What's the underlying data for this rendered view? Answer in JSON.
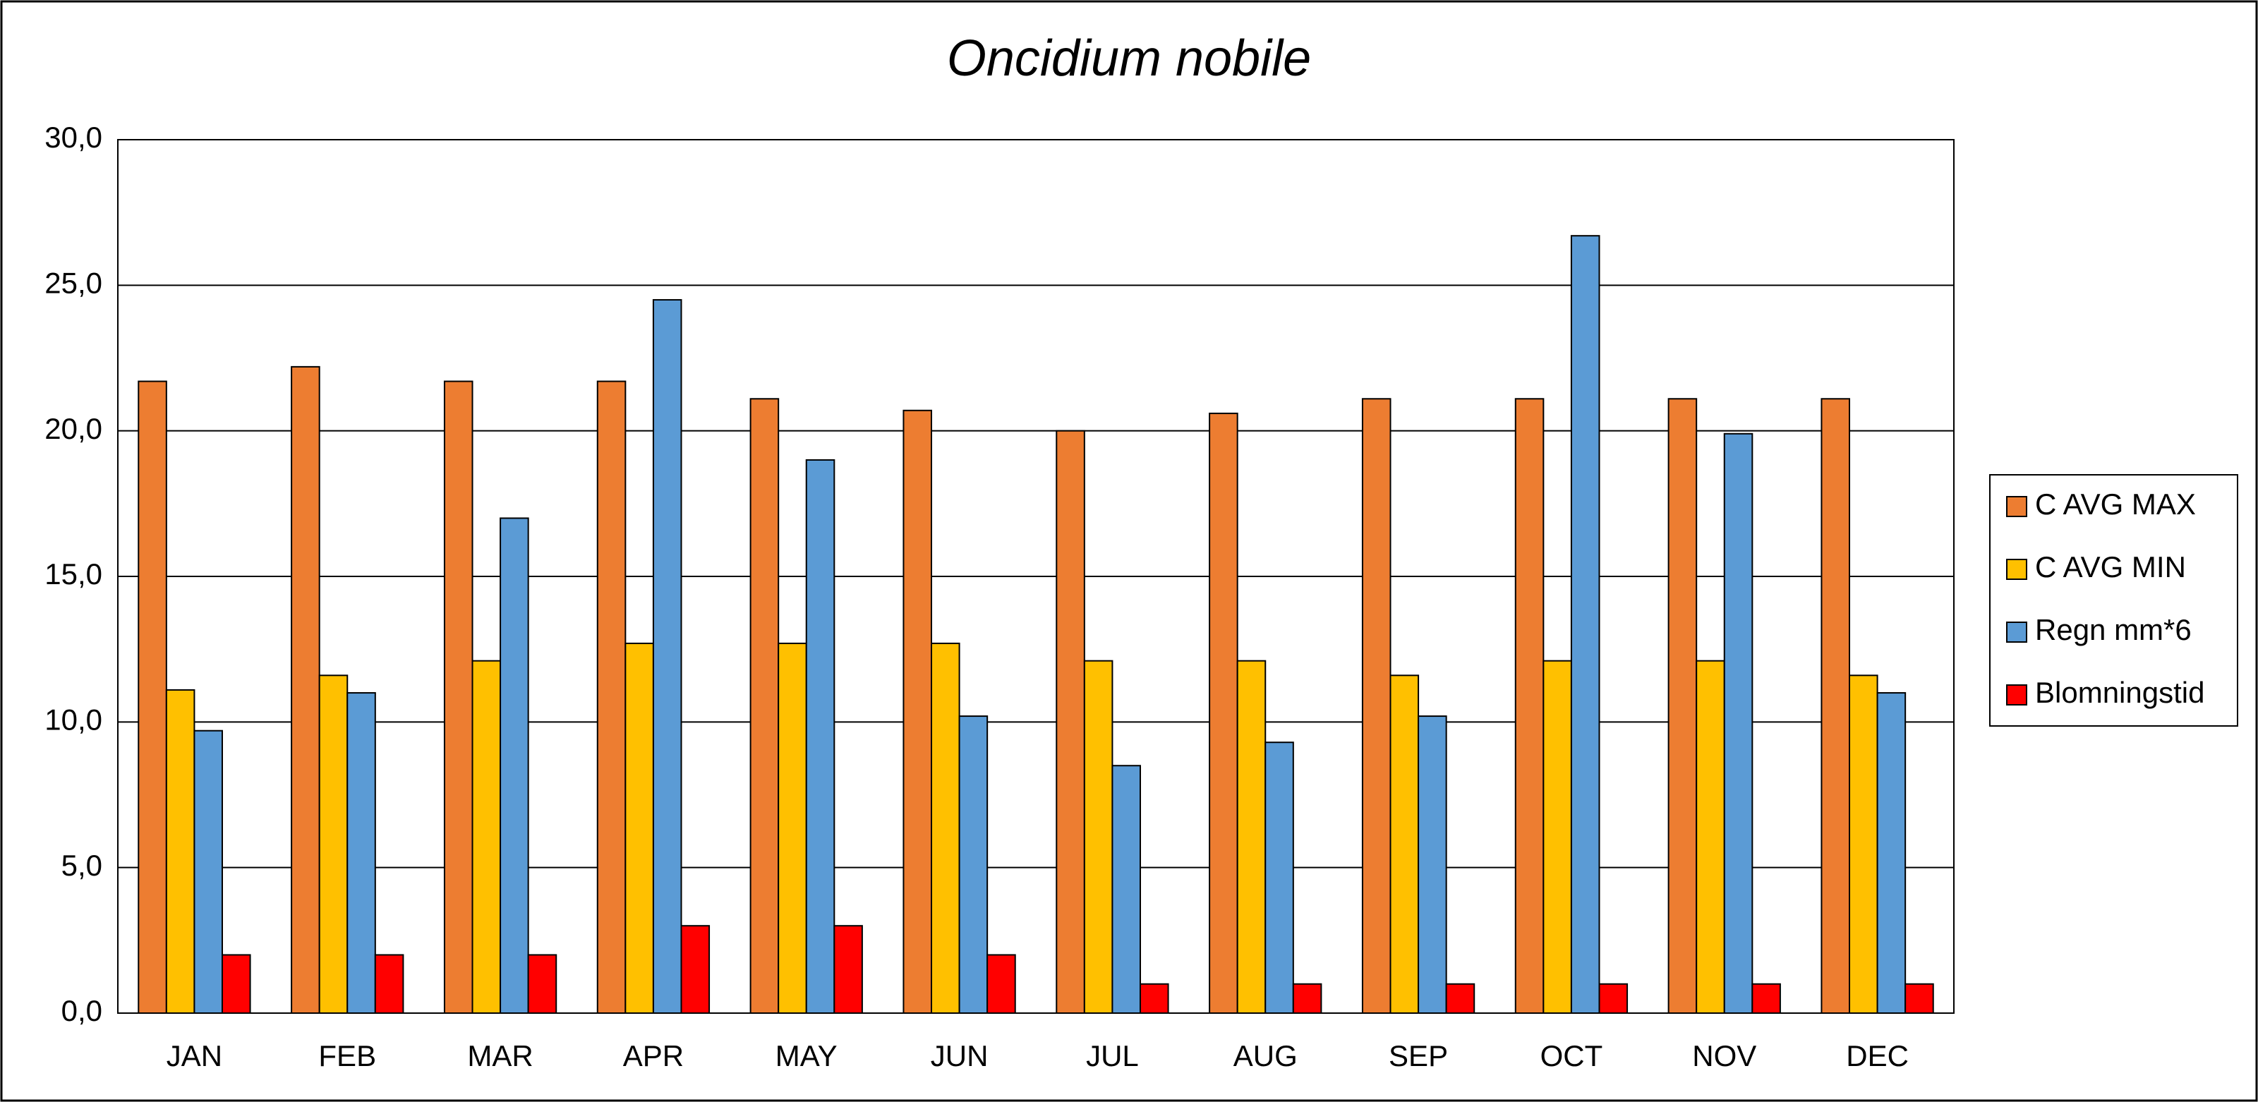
{
  "chart_data": {
    "type": "bar",
    "title": "Oncidium nobile",
    "categories": [
      "JAN",
      "FEB",
      "MAR",
      "APR",
      "MAY",
      "JUN",
      "JUL",
      "AUG",
      "SEP",
      "OCT",
      "NOV",
      "DEC"
    ],
    "series": [
      {
        "name": "C AVG MAX",
        "color": "#ed7d31",
        "values": [
          21.7,
          22.2,
          21.7,
          21.7,
          21.1,
          20.7,
          20.0,
          20.6,
          21.1,
          21.1,
          21.1,
          21.1
        ]
      },
      {
        "name": "C AVG MIN",
        "color": "#ffc000",
        "values": [
          11.1,
          11.6,
          12.1,
          12.7,
          12.7,
          12.7,
          12.1,
          12.1,
          11.6,
          12.1,
          12.1,
          11.6
        ]
      },
      {
        "name": "Regn mm*6",
        "color": "#5b9bd5",
        "values": [
          9.7,
          11.0,
          17.0,
          24.5,
          19.0,
          10.2,
          8.5,
          9.3,
          10.2,
          26.7,
          19.9,
          11.0
        ]
      },
      {
        "name": "Blomningstid",
        "color": "#ff0000",
        "values": [
          2,
          2,
          2,
          3,
          3,
          2,
          1,
          1,
          1,
          1,
          1,
          1
        ]
      }
    ],
    "ylim": [
      0,
      30
    ],
    "yticks": [
      {
        "value": 0,
        "label": "0,0"
      },
      {
        "value": 5,
        "label": "5,0"
      },
      {
        "value": 10,
        "label": "10,0"
      },
      {
        "value": 15,
        "label": "15,0"
      },
      {
        "value": 20,
        "label": "20,0"
      },
      {
        "value": 25,
        "label": "25,0"
      },
      {
        "value": 30,
        "label": "30,0"
      }
    ],
    "grid": true,
    "legend": "right"
  }
}
